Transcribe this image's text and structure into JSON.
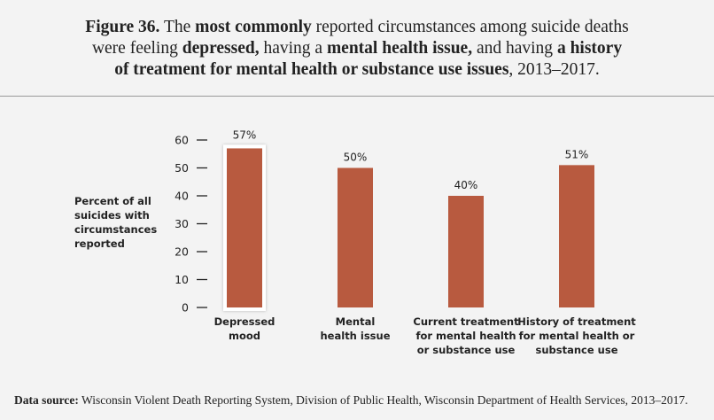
{
  "title_lines": [
    [
      {
        "text": "Figure 36.",
        "bold": true
      },
      {
        "text": " The ",
        "bold": false
      },
      {
        "text": "most commonly",
        "bold": true
      },
      {
        "text": " reported circumstances among suicide deaths",
        "bold": false
      }
    ],
    [
      {
        "text": "were feeling ",
        "bold": false
      },
      {
        "text": "depressed,",
        "bold": true
      },
      {
        "text": " having a ",
        "bold": false
      },
      {
        "text": "mental health issue,",
        "bold": true
      },
      {
        "text": " and having ",
        "bold": false
      },
      {
        "text": "a history",
        "bold": true
      }
    ],
    [
      {
        "text": "of treatment for mental health or substance use issues",
        "bold": true
      },
      {
        "text": ", 2013–2017.",
        "bold": false
      }
    ]
  ],
  "chart_data": {
    "type": "bar",
    "title": "Figure 36. The most commonly reported circumstances among suicide deaths were feeling depressed, having a mental health issue, and having a history of treatment for mental health or substance use issues, 2013–2017.",
    "categories": [
      [
        "Depressed",
        "mood"
      ],
      [
        "Mental",
        "health issue"
      ],
      [
        "Current treatment",
        "for mental health",
        "or substance use"
      ],
      [
        "History of treatment",
        "for mental health or",
        "substance use"
      ]
    ],
    "values": [
      57,
      50,
      40,
      51
    ],
    "data_labels": [
      "57%",
      "50%",
      "40%",
      "51%"
    ],
    "highlight_index": 0,
    "ylabel": "Percent of all suicides with circumstances reported",
    "ylabel_lines": [
      "Percent of all",
      "suicides with",
      "circumstances",
      "reported"
    ],
    "xlabel": "",
    "ylim": [
      0,
      60
    ],
    "yticks": [
      0,
      10,
      20,
      30,
      40,
      50,
      60
    ],
    "grid": false,
    "bar_color": "#b85a3f"
  },
  "footer": {
    "label": "Data source:",
    "text": " Wisconsin Violent Death Reporting System, Division of Public Health, Wisconsin Department of Health Services, 2013–2017."
  }
}
